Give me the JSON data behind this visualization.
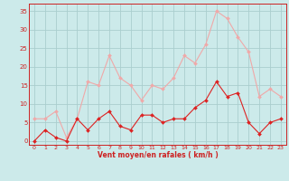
{
  "x": [
    0,
    1,
    2,
    3,
    4,
    5,
    6,
    7,
    8,
    9,
    10,
    11,
    12,
    13,
    14,
    15,
    16,
    17,
    18,
    19,
    20,
    21,
    22,
    23
  ],
  "wind_avg": [
    0,
    3,
    1,
    0,
    6,
    3,
    6,
    8,
    4,
    3,
    7,
    7,
    5,
    6,
    6,
    9,
    11,
    16,
    12,
    13,
    5,
    2,
    5,
    6
  ],
  "wind_gust": [
    6,
    6,
    8,
    1,
    6,
    16,
    15,
    23,
    17,
    15,
    11,
    15,
    14,
    17,
    23,
    21,
    26,
    35,
    33,
    28,
    24,
    12,
    14,
    12
  ],
  "xlabel": "Vent moyen/en rafales ( km/h )",
  "xlim": [
    -0.5,
    23.5
  ],
  "ylim": [
    -1,
    37
  ],
  "yticks": [
    0,
    5,
    10,
    15,
    20,
    25,
    30,
    35
  ],
  "xticks": [
    0,
    1,
    2,
    3,
    4,
    5,
    6,
    7,
    8,
    9,
    10,
    11,
    12,
    13,
    14,
    15,
    16,
    17,
    18,
    19,
    20,
    21,
    22,
    23
  ],
  "avg_color": "#dd2222",
  "gust_color": "#f0a8a8",
  "bg_color": "#cceaea",
  "grid_color": "#aacece",
  "spine_color": "#cc2222",
  "text_color": "#cc2222",
  "xlabel_color": "#cc2222"
}
